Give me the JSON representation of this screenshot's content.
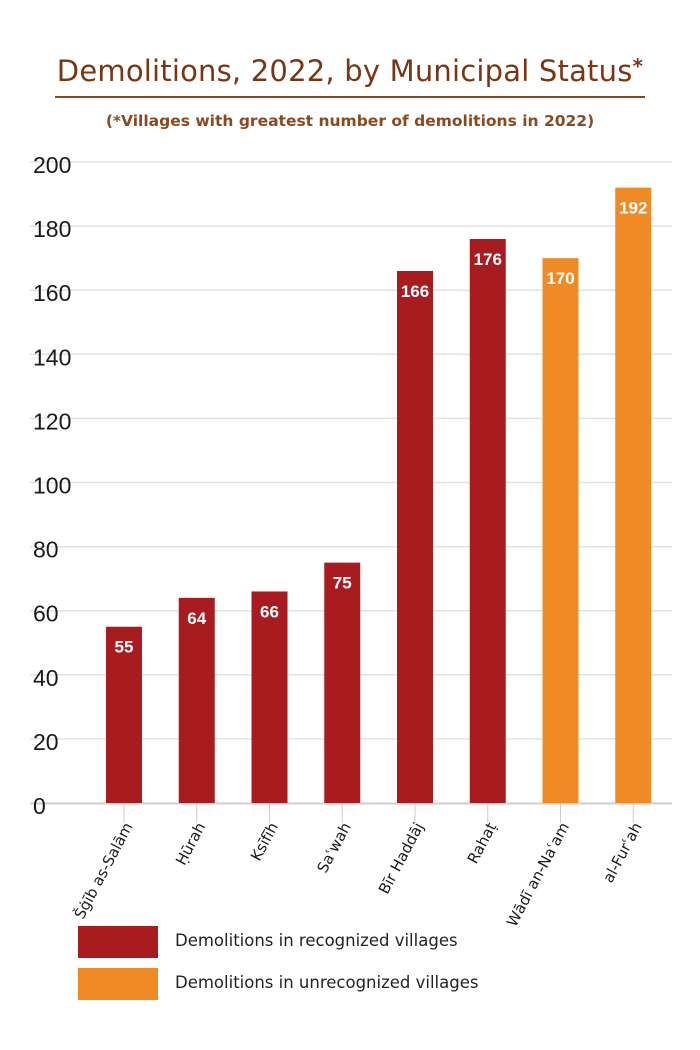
{
  "chart_data": {
    "type": "bar",
    "title": "Demolitions, 2022, by Municipal Status",
    "title_marker": "*",
    "subtitle": "(*Villages with greatest number of demolitions in 2022)",
    "xlabel": "",
    "ylabel": "",
    "ylim": [
      0,
      200
    ],
    "yticks": [
      0,
      20,
      40,
      60,
      80,
      100,
      120,
      140,
      160,
      180,
      200
    ],
    "grid": true,
    "legend_position": "bottom",
    "categories": [
      "Šġīb as-Salām",
      "Ḥūrah",
      "Ksīfīh",
      "Saʿwah",
      "Bīr Haddāj",
      "Rahaṭ",
      "Wādī an-Naʿam",
      "al-Furʿah"
    ],
    "values": [
      55,
      64,
      66,
      75,
      166,
      176,
      170,
      192
    ],
    "series": [
      {
        "name": "Demolitions in recognized villages",
        "color": "#a81b1f",
        "category_indices": [
          0,
          1,
          2,
          3,
          4,
          5
        ]
      },
      {
        "name": "Demolitions in unrecognized villages",
        "color": "#f08a24",
        "category_indices": [
          6,
          7
        ]
      }
    ]
  }
}
